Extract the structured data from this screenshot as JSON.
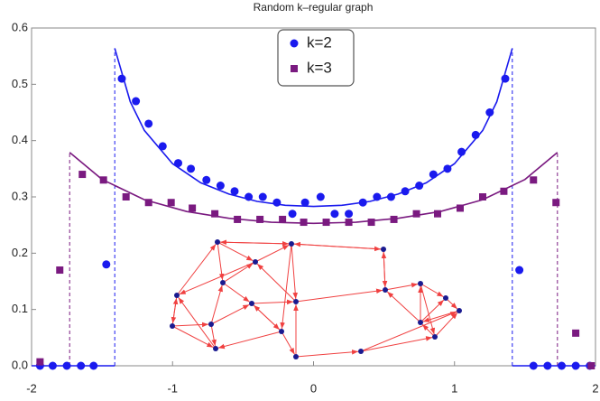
{
  "chart_data": {
    "type": "scatter",
    "title": "Random k–regular graph",
    "xlim": [
      -2,
      2
    ],
    "ylim": [
      0,
      0.6
    ],
    "xticks": [
      -2,
      -1,
      0,
      1,
      2
    ],
    "yticks": [
      {
        "value": 0,
        "label": "0.0"
      },
      0.1,
      0.2,
      0.3,
      0.4,
      0.5,
      0.6
    ],
    "legend": "top-center",
    "series": [
      {
        "name": "k=2",
        "color": "#1a1aee",
        "marker": "circle",
        "x": [
          -1.94,
          -1.85,
          -1.75,
          -1.65,
          -1.56,
          -1.47,
          -1.36,
          -1.26,
          -1.17,
          -1.07,
          -0.96,
          -0.87,
          -0.76,
          -0.66,
          -0.56,
          -0.46,
          -0.36,
          -0.26,
          -0.15,
          -0.06,
          0.05,
          0.15,
          0.25,
          0.35,
          0.45,
          0.55,
          0.65,
          0.75,
          0.85,
          0.95,
          1.05,
          1.15,
          1.25,
          1.36,
          1.46,
          1.56,
          1.66,
          1.76,
          1.86,
          1.96
        ],
        "values": [
          0,
          0,
          0,
          0,
          0,
          0.18,
          0.51,
          0.47,
          0.43,
          0.39,
          0.36,
          0.35,
          0.33,
          0.32,
          0.31,
          0.3,
          0.3,
          0.29,
          0.27,
          0.29,
          0.3,
          0.27,
          0.27,
          0.29,
          0.3,
          0.3,
          0.31,
          0.32,
          0.34,
          0.35,
          0.38,
          0.41,
          0.45,
          0.51,
          0.17,
          0,
          0,
          0,
          0,
          0
        ]
      },
      {
        "name": "k=3",
        "color": "#7a1a80",
        "marker": "square",
        "x": [
          -1.94,
          -1.8,
          -1.64,
          -1.49,
          -1.33,
          -1.17,
          -1.01,
          -0.86,
          -0.7,
          -0.54,
          -0.38,
          -0.22,
          -0.07,
          0.09,
          0.25,
          0.41,
          0.57,
          0.73,
          0.88,
          1.04,
          1.2,
          1.35,
          1.56,
          1.72,
          1.86,
          1.97
        ],
        "values": [
          0.007,
          0.17,
          0.34,
          0.33,
          0.3,
          0.29,
          0.29,
          0.28,
          0.27,
          0.26,
          0.26,
          0.26,
          0.255,
          0.255,
          0.255,
          0.255,
          0.26,
          0.27,
          0.27,
          0.28,
          0.3,
          0.31,
          0.33,
          0.29,
          0.058,
          0
        ]
      }
    ],
    "lines": [
      {
        "color": "#1a1aee",
        "dash": false,
        "x": [
          -1.41,
          -1.3,
          -1.2,
          -1,
          -0.8,
          -0.6,
          -0.4,
          -0.2,
          0,
          0.2,
          0.4,
          0.6,
          0.8,
          1,
          1.2,
          1.3,
          1.41
        ],
        "values": [
          0.564,
          0.469,
          0.418,
          0.359,
          0.325,
          0.305,
          0.292,
          0.285,
          0.283,
          0.285,
          0.292,
          0.305,
          0.325,
          0.359,
          0.418,
          0.469,
          0.564
        ]
      },
      {
        "color": "#1a1aee",
        "dash": false,
        "x": [
          -2,
          -1.41
        ],
        "values": [
          0,
          0
        ]
      },
      {
        "color": "#1a1aee",
        "dash": false,
        "x": [
          1.41,
          2
        ],
        "values": [
          0,
          0
        ]
      },
      {
        "color": "#1a1aee",
        "dash": true,
        "x": [
          -1.41,
          -1.41
        ],
        "values": [
          0,
          0.564
        ]
      },
      {
        "color": "#1a1aee",
        "dash": true,
        "x": [
          1.41,
          1.41
        ],
        "values": [
          0,
          0.564
        ]
      },
      {
        "color": "#7a1a80",
        "dash": false,
        "x": [
          -1.73,
          -1.5,
          -1.2,
          -0.9,
          -0.6,
          -0.3,
          0,
          0.3,
          0.6,
          0.9,
          1.2,
          1.5,
          1.73
        ],
        "values": [
          0.379,
          0.331,
          0.295,
          0.274,
          0.262,
          0.255,
          0.253,
          0.255,
          0.262,
          0.274,
          0.295,
          0.331,
          0.379
        ]
      },
      {
        "color": "#7a1a80",
        "dash": true,
        "x": [
          -1.73,
          -1.73
        ],
        "values": [
          0,
          0.379
        ]
      },
      {
        "color": "#7a1a80",
        "dash": true,
        "x": [
          1.73,
          1.73
        ],
        "values": [
          0,
          0.379
        ]
      }
    ]
  }
}
